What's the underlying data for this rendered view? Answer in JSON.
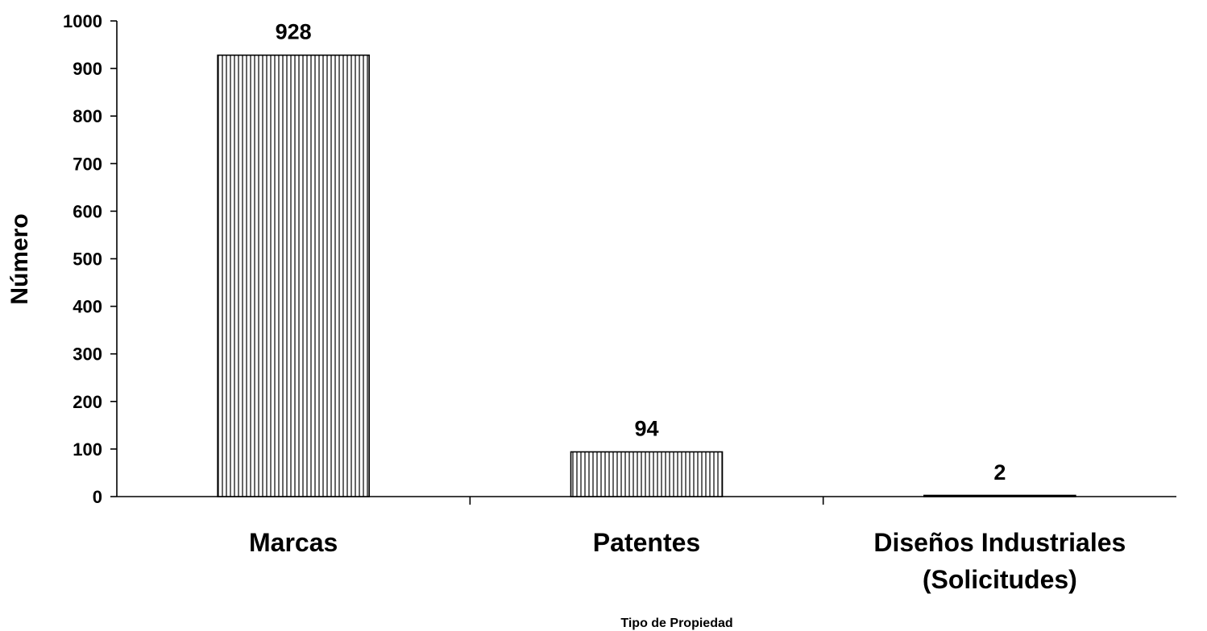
{
  "chart_data": {
    "type": "bar",
    "xlabel": "Tipo de Propiedad",
    "ylabel": "Número",
    "categories": [
      [
        "Marcas"
      ],
      [
        "Patentes"
      ],
      [
        "Diseños Industriales",
        "(Solicitudes)"
      ]
    ],
    "values": [
      928,
      94,
      2
    ],
    "ylim": [
      0,
      1000
    ],
    "yticks": [
      0,
      100,
      200,
      300,
      400,
      500,
      600,
      700,
      800,
      900,
      1000
    ],
    "grid": false,
    "legend": "none",
    "bar_fill": "vertical-hatch",
    "colors": {
      "bar_stroke": "#000000",
      "bar_fill": "#ffffff",
      "axis": "#000000"
    }
  }
}
